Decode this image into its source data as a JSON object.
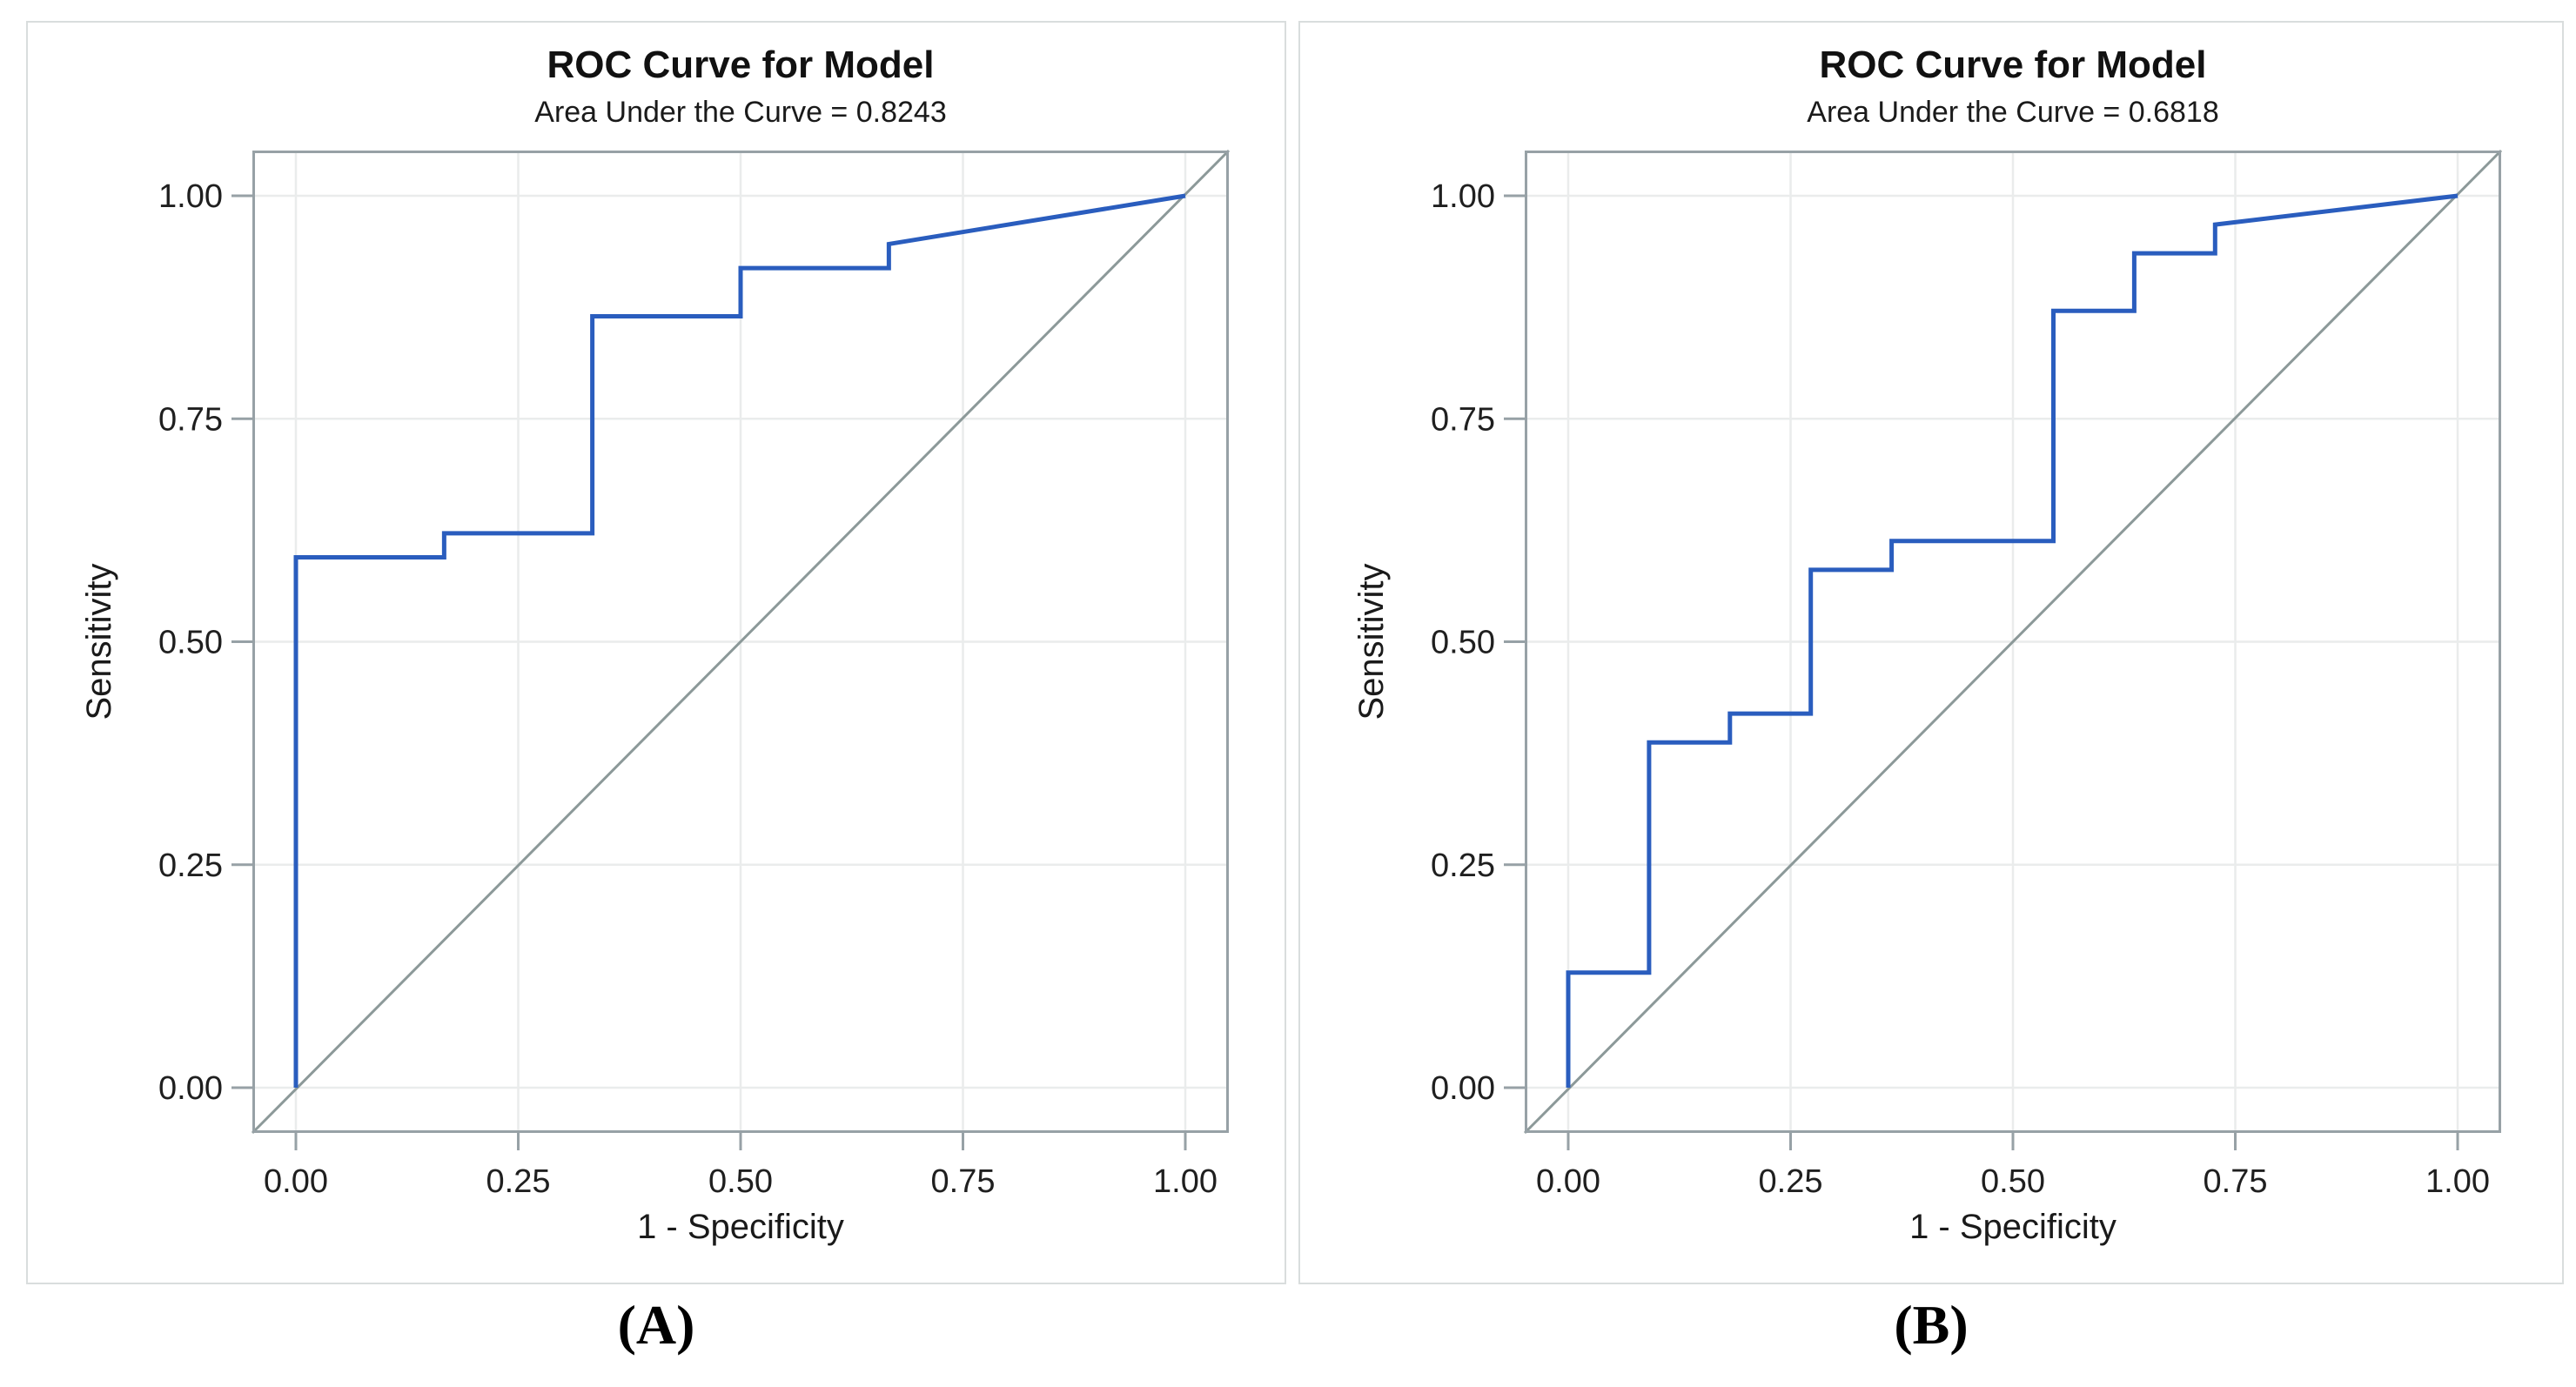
{
  "figure": {
    "background": "#ffffff",
    "style": {
      "roc_color": "#2A5DBE",
      "reference_color": "#8C9999",
      "frame_color": "#97A1A6",
      "grid_color": "#EAECEC",
      "tick_text_color": "#1f1f1f"
    }
  },
  "chart_data": [
    {
      "panel_label": "(A)",
      "type": "line",
      "title": "ROC Curve for Model",
      "subtitle": "Area Under the Curve = 0.8243",
      "auc": 0.8243,
      "xlabel": "1 - Specificity",
      "ylabel": "Sensitivity",
      "xlim": [
        0,
        1
      ],
      "ylim": [
        0,
        1
      ],
      "grid": true,
      "tick_values": [
        0,
        0.25,
        0.5,
        0.75,
        1
      ],
      "xticks": [
        "0.00",
        "0.25",
        "0.50",
        "0.75",
        "1.00"
      ],
      "yticks": [
        "0.00",
        "0.25",
        "0.50",
        "0.75",
        "1.00"
      ],
      "reference_line": [
        [
          0,
          0
        ],
        [
          1,
          1
        ]
      ],
      "roc_points": [
        [
          0,
          0
        ],
        [
          0,
          0.5946
        ],
        [
          0.1667,
          0.5946
        ],
        [
          0.1667,
          0.6216
        ],
        [
          0.3333,
          0.6216
        ],
        [
          0.3333,
          0.8649
        ],
        [
          0.5,
          0.8649
        ],
        [
          0.5,
          0.9189
        ],
        [
          0.6667,
          0.9189
        ],
        [
          0.6667,
          0.9459
        ],
        [
          1,
          1
        ]
      ]
    },
    {
      "panel_label": "(B)",
      "type": "line",
      "title": "ROC Curve for Model",
      "subtitle": "Area Under the Curve = 0.6818",
      "auc": 0.6818,
      "xlabel": "1 - Specificity",
      "ylabel": "Sensitivity",
      "xlim": [
        0,
        1
      ],
      "ylim": [
        0,
        1
      ],
      "grid": true,
      "tick_values": [
        0,
        0.25,
        0.5,
        0.75,
        1
      ],
      "xticks": [
        "0.00",
        "0.25",
        "0.50",
        "0.75",
        "1.00"
      ],
      "yticks": [
        "0.00",
        "0.25",
        "0.50",
        "0.75",
        "1.00"
      ],
      "reference_line": [
        [
          0,
          0
        ],
        [
          1,
          1
        ]
      ],
      "roc_points": [
        [
          0,
          0
        ],
        [
          0,
          0.129
        ],
        [
          0.0909,
          0.129
        ],
        [
          0.0909,
          0.3871
        ],
        [
          0.1818,
          0.3871
        ],
        [
          0.1818,
          0.4194
        ],
        [
          0.2727,
          0.4194
        ],
        [
          0.2727,
          0.5806
        ],
        [
          0.3636,
          0.5806
        ],
        [
          0.3636,
          0.6129
        ],
        [
          0.5455,
          0.6129
        ],
        [
          0.5455,
          0.871
        ],
        [
          0.6364,
          0.871
        ],
        [
          0.6364,
          0.9355
        ],
        [
          0.7273,
          0.9355
        ],
        [
          0.7273,
          0.9677
        ],
        [
          1,
          1
        ]
      ]
    }
  ]
}
